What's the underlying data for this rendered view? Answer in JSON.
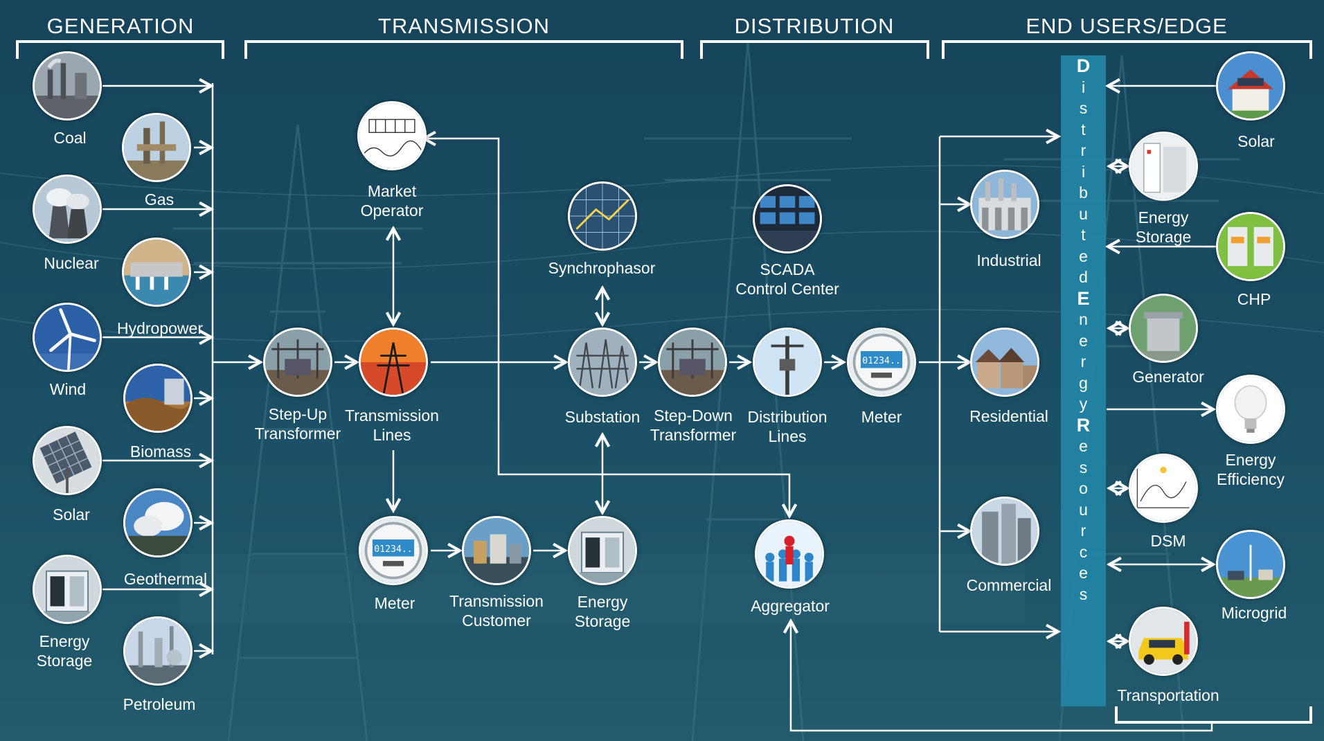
{
  "sections": {
    "generation": "GENERATION",
    "transmission": "TRANSMISSION",
    "distribution": "DISTRIBUTION",
    "end_users": "END USERS/EDGE"
  },
  "distributed_energy_resources": "Distributed Energy Resources",
  "generation": {
    "coal": "Coal",
    "gas": "Gas",
    "nuclear": "Nuclear",
    "hydropower": "Hydropower",
    "wind": "Wind",
    "biomass": "Biomass",
    "solar": "Solar",
    "geothermal": "Geothermal",
    "energy_storage": [
      "Energy",
      "Storage"
    ],
    "petroleum": "Petroleum"
  },
  "transmission": {
    "market_operator": [
      "Market",
      "Operator"
    ],
    "step_up_transformer": [
      "Step-Up",
      "Transformer"
    ],
    "transmission_lines": [
      "Transmission",
      "Lines"
    ],
    "meter": "Meter",
    "transmission_customer": [
      "Transmission",
      "Customer"
    ],
    "energy_storage": [
      "Energy",
      "Storage"
    ],
    "synchrophasor": "Synchrophasor",
    "substation": "Substation"
  },
  "distribution": {
    "step_down_transformer": [
      "Step-Down",
      "Transformer"
    ],
    "scada": [
      "SCADA",
      "Control Center"
    ],
    "distribution_lines": [
      "Distribution",
      "Lines"
    ],
    "meter": "Meter",
    "aggregator": "Aggregator"
  },
  "end_users": {
    "industrial": "Industrial",
    "residential": "Residential",
    "commercial": "Commercial"
  },
  "der": {
    "solar": "Solar",
    "energy_storage": [
      "Energy",
      "Storage"
    ],
    "chp": "CHP",
    "generator": "Generator",
    "energy_efficiency": [
      "Energy",
      "Efficiency"
    ],
    "dsm": "DSM",
    "microgrid": "Microgrid",
    "transportation": "Transportation"
  },
  "meter_display": "01234..",
  "colors": {
    "background": "#1a4b5e",
    "der_bar": "#2384a3",
    "lines": "#ffffff",
    "text": "#ffffff"
  }
}
